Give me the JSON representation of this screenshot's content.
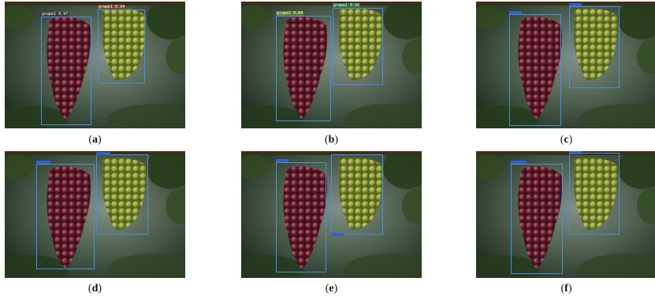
{
  "figure": {
    "panels": [
      {
        "caption": "a",
        "box_color": "#4a8fe0",
        "detections": [
          {
            "label": "grape1 0.97",
            "label_bg": "#3a3a3a"
          },
          {
            "label": "grape1 0.94",
            "label_bg": "#7a4a2a"
          }
        ]
      },
      {
        "caption": "b",
        "box_color": "#4a8fe0",
        "detections": [
          {
            "label": "grape1 0.84",
            "label_bg": "#5a7a2a"
          },
          {
            "label": "grape1 0.91",
            "label_bg": "#3a6a3a"
          }
        ]
      },
      {
        "caption": "c",
        "box_color": "#4a8fe0",
        "detections": [
          {
            "label": "",
            "label_bg": "#3a5fc0"
          },
          {
            "label": "",
            "label_bg": "#3a5fc0"
          }
        ]
      },
      {
        "caption": "d",
        "box_color": "#4a8fe0",
        "detections": [
          {
            "label": "",
            "label_bg": "#3a5fc0"
          },
          {
            "label": "",
            "label_bg": "#3a5fc0"
          }
        ]
      },
      {
        "caption": "e",
        "box_color": "#4a8fe0",
        "detections": [
          {
            "label": "",
            "label_bg": "#3a5fc0"
          },
          {
            "label": "",
            "label_bg": "#3a5fc0"
          }
        ]
      },
      {
        "caption": "f",
        "box_color": "#4a8fe0",
        "detections": [
          {
            "label": "",
            "label_bg": "#3a5fc0"
          },
          {
            "label": "",
            "label_bg": "#3a5fc0"
          }
        ]
      }
    ]
  }
}
